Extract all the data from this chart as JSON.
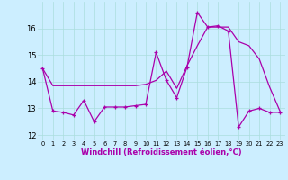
{
  "xlabel": "Windchill (Refroidissement éolien,°C)",
  "background_color": "#cceeff",
  "line_color": "#aa00aa",
  "x_ticks": [
    0,
    1,
    2,
    3,
    4,
    5,
    6,
    7,
    8,
    9,
    10,
    11,
    12,
    13,
    14,
    15,
    16,
    17,
    18,
    19,
    20,
    21,
    22,
    23
  ],
  "ylim": [
    11.8,
    17.0
  ],
  "y_ticks": [
    12,
    13,
    14,
    15,
    16
  ],
  "series1_x": [
    0,
    1,
    2,
    3,
    4,
    5,
    6,
    7,
    8,
    9,
    10,
    11,
    12,
    13,
    14,
    15,
    16,
    17,
    18,
    19,
    20,
    21,
    22,
    23
  ],
  "series1_y": [
    14.5,
    13.85,
    13.85,
    13.85,
    13.85,
    13.85,
    13.85,
    13.85,
    13.85,
    13.85,
    13.9,
    14.05,
    14.4,
    13.75,
    14.6,
    15.35,
    16.05,
    16.05,
    16.05,
    15.5,
    15.35,
    14.85,
    13.8,
    12.9
  ],
  "series2_x": [
    0,
    1,
    2,
    3,
    4,
    5,
    6,
    7,
    8,
    9,
    10,
    11,
    12,
    13,
    14,
    15,
    16,
    17,
    18,
    19,
    20,
    21,
    22,
    23
  ],
  "series2_y": [
    14.5,
    12.9,
    12.85,
    12.75,
    13.3,
    12.5,
    13.05,
    13.05,
    13.05,
    13.1,
    13.15,
    15.1,
    14.05,
    13.4,
    14.55,
    16.6,
    16.05,
    16.1,
    15.9,
    12.3,
    12.9,
    13.0,
    12.85,
    12.85
  ]
}
